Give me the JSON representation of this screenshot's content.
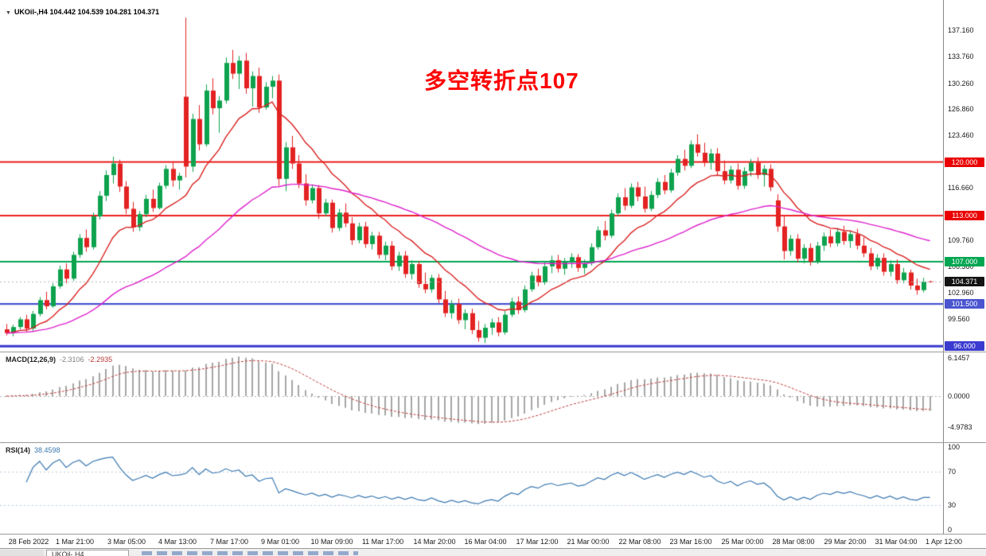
{
  "title_bar": {
    "dropdown_icon": "▼",
    "symbol": "UKOil-,H4",
    "ohlc": "104.442 104.539 104.281 104.371"
  },
  "annotation": {
    "text": "多空转折点107",
    "color": "#fe0000"
  },
  "bottom_bar": {
    "active_tab": "UKOil-,H4"
  },
  "chart_data": {
    "type": "candlestick",
    "symbol": "UKOil-",
    "timeframe": "H4",
    "title": "UKOil-,H4 104.442 104.539 104.281 104.371",
    "current": {
      "open": 104.442,
      "high": 104.539,
      "low": 104.281,
      "close": 104.371
    },
    "main_pane": {
      "ylim": [
        95.3,
        141.1
      ],
      "grid": "off",
      "candle_colors": {
        "bull": "#0ea24e",
        "bear": "#e32222"
      },
      "moving_averages": [
        {
          "period": 13,
          "color": "#d92121"
        },
        {
          "period": 48,
          "color": "#dd22cc"
        }
      ],
      "y_ticks": [
        {
          "label": "137.160",
          "value": 137.16
        },
        {
          "label": "133.760",
          "value": 133.76
        },
        {
          "label": "130.260",
          "value": 130.26
        },
        {
          "label": "126.860",
          "value": 126.86
        },
        {
          "label": "123.460",
          "value": 123.46
        },
        {
          "label": "116.660",
          "value": 116.66
        },
        {
          "label": "109.760",
          "value": 109.76
        },
        {
          "label": "106.360",
          "value": 106.36
        },
        {
          "label": "102.960",
          "value": 102.96
        },
        {
          "label": "99.560",
          "value": 99.56
        }
      ],
      "levels": [
        {
          "label": "120.000",
          "value": 120.0,
          "color": "#ea0000",
          "width": 1.7
        },
        {
          "label": "113.000",
          "value": 113.0,
          "color": "#ea0000",
          "width": 1.7
        },
        {
          "label": "107.000",
          "value": 107.0,
          "color": "#00a651",
          "width": 2
        },
        {
          "label": "101.500",
          "value": 101.5,
          "color": "#4a55cf",
          "width": 2.2
        },
        {
          "label": "96.000",
          "value": 96.0,
          "color": "#3b3bd0",
          "width": 2.8
        }
      ],
      "current_price_badge": {
        "label": "104.371",
        "value": 104.371,
        "bg": "#141414"
      }
    },
    "macd_pane": {
      "label": "MACD(12,26,9)",
      "value_main": "-2.3106",
      "value_signal": "-2.2935",
      "params": [
        12,
        26,
        9
      ],
      "ylim": [
        -7.4,
        7.0
      ],
      "bar_color": "#a6a6a6",
      "signal_color": "#c23b3b",
      "y_ticks": [
        {
          "label": "6.1457",
          "value": 6.1457
        },
        {
          "label": "0.0000",
          "value": 0
        },
        {
          "label": "-4.9783",
          "value": -4.9783
        }
      ]
    },
    "rsi_pane": {
      "label": "RSI(14)",
      "value_text": "38.4598",
      "period": 14,
      "ylim": [
        0,
        100
      ],
      "line_color": "#3a78b0",
      "levels": [
        70,
        30
      ],
      "y_ticks": [
        {
          "label": "100",
          "value": 100
        },
        {
          "label": "70",
          "value": 70
        },
        {
          "label": "30",
          "value": 30
        },
        {
          "label": "0",
          "value": 0
        }
      ]
    },
    "x_axis": {
      "labels": [
        "28 Feb 2022",
        "1 Mar 21:00",
        "3 Mar 05:00",
        "4 Mar 13:00",
        "7 Mar 17:00",
        "9 Mar 01:00",
        "10 Mar 09:00",
        "11 Mar 17:00",
        "14 Mar 20:00",
        "16 Mar 04:00",
        "17 Mar 12:00",
        "21 Mar 00:00",
        "22 Mar 08:00",
        "23 Mar 16:00",
        "25 Mar 00:00",
        "28 Mar 08:00",
        "29 Mar 20:00",
        "31 Mar 04:00",
        "1 Apr 12:00"
      ],
      "positions": [
        36,
        94,
        159,
        223,
        288,
        352,
        417,
        481,
        546,
        610,
        675,
        739,
        804,
        868,
        933,
        997,
        1062,
        1126,
        1186
      ]
    },
    "candles": [
      [
        98.2,
        98.9,
        97.4,
        97.7
      ],
      [
        97.7,
        98.8,
        97.3,
        98.5
      ],
      [
        98.5,
        99.8,
        98.2,
        99.5
      ],
      [
        99.5,
        100.1,
        97.9,
        98.3
      ],
      [
        98.3,
        100.6,
        98.0,
        100.2
      ],
      [
        100.2,
        102.4,
        99.9,
        102.0
      ],
      [
        102.0,
        103.1,
        100.8,
        101.2
      ],
      [
        101.2,
        104.2,
        101.0,
        103.8
      ],
      [
        103.8,
        106.5,
        103.5,
        106.0
      ],
      [
        106.0,
        106.8,
        104.2,
        104.8
      ],
      [
        104.8,
        108.3,
        104.5,
        107.9
      ],
      [
        107.9,
        110.6,
        107.5,
        110.1
      ],
      [
        110.1,
        111.2,
        108.3,
        108.9
      ],
      [
        108.9,
        113.4,
        108.6,
        112.9
      ],
      [
        112.9,
        116.2,
        112.5,
        115.6
      ],
      [
        115.6,
        118.9,
        114.9,
        118.3
      ],
      [
        118.3,
        120.7,
        117.2,
        119.8
      ],
      [
        119.8,
        120.3,
        116.1,
        116.8
      ],
      [
        116.8,
        117.5,
        113.2,
        113.9
      ],
      [
        113.9,
        114.8,
        110.9,
        111.5
      ],
      [
        111.5,
        113.6,
        111.0,
        113.2
      ],
      [
        113.2,
        115.7,
        112.8,
        115.2
      ],
      [
        115.2,
        116.4,
        113.5,
        114.0
      ],
      [
        114.0,
        117.3,
        113.8,
        116.9
      ],
      [
        116.9,
        119.6,
        116.5,
        119.1
      ],
      [
        119.1,
        119.9,
        116.8,
        117.6
      ],
      [
        117.6,
        118.6,
        116.4,
        118.2
      ],
      [
        128.5,
        138.8,
        118.0,
        119.4
      ],
      [
        119.4,
        126.3,
        118.7,
        125.6
      ],
      [
        125.6,
        127.4,
        121.5,
        122.3
      ],
      [
        122.3,
        130.1,
        122.0,
        129.3
      ],
      [
        129.3,
        130.9,
        126.2,
        127.0
      ],
      [
        127.0,
        128.6,
        123.8,
        128.0
      ],
      [
        128.0,
        133.6,
        127.6,
        132.9
      ],
      [
        132.9,
        134.6,
        130.8,
        131.5
      ],
      [
        131.5,
        133.8,
        129.5,
        133.2
      ],
      [
        133.2,
        134.2,
        128.9,
        129.6
      ],
      [
        129.6,
        131.8,
        127.2,
        131.2
      ],
      [
        131.2,
        132.3,
        126.4,
        127.1
      ],
      [
        127.1,
        130.4,
        126.8,
        129.8
      ],
      [
        129.8,
        131.2,
        128.3,
        130.6
      ],
      [
        130.6,
        131.4,
        116.9,
        117.8
      ],
      [
        117.8,
        122.6,
        116.2,
        121.9
      ],
      [
        121.9,
        123.4,
        119.1,
        119.8
      ],
      [
        119.8,
        120.9,
        116.6,
        117.2
      ],
      [
        117.2,
        118.4,
        114.3,
        115.0
      ],
      [
        115.0,
        117.1,
        114.6,
        116.6
      ],
      [
        116.6,
        117.0,
        112.6,
        113.3
      ],
      [
        113.3,
        115.2,
        112.9,
        114.7
      ],
      [
        114.7,
        115.1,
        110.8,
        111.4
      ],
      [
        111.4,
        113.9,
        111.0,
        113.4
      ],
      [
        113.4,
        114.6,
        111.5,
        112.0
      ],
      [
        112.0,
        112.8,
        109.2,
        109.8
      ],
      [
        109.8,
        112.1,
        109.4,
        111.6
      ],
      [
        111.6,
        112.2,
        108.8,
        109.3
      ],
      [
        109.3,
        110.9,
        108.6,
        110.4
      ],
      [
        110.4,
        110.9,
        107.4,
        107.9
      ],
      [
        107.9,
        109.6,
        107.2,
        109.1
      ],
      [
        109.1,
        109.7,
        105.9,
        106.4
      ],
      [
        106.4,
        108.3,
        105.8,
        107.8
      ],
      [
        107.8,
        108.4,
        104.9,
        105.4
      ],
      [
        105.4,
        107.2,
        104.7,
        106.7
      ],
      [
        106.7,
        107.1,
        103.6,
        104.1
      ],
      [
        104.1,
        105.6,
        102.9,
        103.4
      ],
      [
        103.4,
        105.3,
        103.0,
        104.9
      ],
      [
        104.9,
        105.4,
        101.6,
        102.1
      ],
      [
        102.1,
        103.2,
        99.8,
        100.3
      ],
      [
        100.3,
        102.0,
        99.6,
        101.5
      ],
      [
        101.5,
        102.2,
        98.9,
        99.4
      ],
      [
        99.4,
        100.8,
        98.2,
        100.3
      ],
      [
        100.3,
        100.9,
        97.6,
        98.1
      ],
      [
        98.1,
        99.3,
        96.6,
        97.1
      ],
      [
        97.1,
        98.9,
        96.4,
        98.4
      ],
      [
        98.4,
        99.6,
        97.5,
        99.1
      ],
      [
        99.1,
        99.8,
        97.3,
        97.8
      ],
      [
        97.8,
        100.6,
        97.5,
        100.1
      ],
      [
        100.1,
        102.3,
        99.8,
        101.8
      ],
      [
        101.8,
        102.5,
        100.2,
        100.7
      ],
      [
        100.7,
        103.9,
        100.4,
        103.4
      ],
      [
        103.4,
        105.7,
        103.1,
        105.2
      ],
      [
        105.2,
        106.1,
        103.8,
        104.3
      ],
      [
        104.3,
        106.9,
        104.0,
        106.4
      ],
      [
        106.4,
        107.8,
        105.5,
        107.2
      ],
      [
        107.2,
        107.9,
        105.6,
        106.1
      ],
      [
        106.1,
        107.5,
        105.3,
        107.0
      ],
      [
        107.0,
        108.1,
        106.2,
        107.6
      ],
      [
        107.6,
        108.0,
        105.7,
        106.2
      ],
      [
        106.2,
        107.3,
        105.4,
        106.8
      ],
      [
        106.8,
        109.4,
        106.5,
        108.9
      ],
      [
        108.9,
        111.6,
        108.6,
        111.1
      ],
      [
        111.1,
        112.3,
        109.8,
        110.4
      ],
      [
        110.4,
        113.8,
        110.1,
        113.3
      ],
      [
        113.3,
        115.9,
        112.9,
        115.4
      ],
      [
        115.4,
        116.6,
        113.7,
        114.3
      ],
      [
        114.3,
        117.2,
        114.0,
        116.7
      ],
      [
        116.7,
        117.4,
        114.9,
        115.5
      ],
      [
        115.5,
        116.8,
        113.4,
        113.9
      ],
      [
        113.9,
        116.2,
        113.6,
        115.7
      ],
      [
        115.7,
        117.9,
        115.3,
        117.4
      ],
      [
        117.4,
        118.3,
        115.8,
        116.3
      ],
      [
        116.3,
        119.1,
        116.0,
        118.6
      ],
      [
        118.6,
        120.9,
        118.2,
        120.4
      ],
      [
        120.4,
        121.6,
        118.9,
        119.5
      ],
      [
        119.5,
        122.8,
        119.2,
        122.3
      ],
      [
        122.3,
        123.6,
        120.7,
        121.2
      ],
      [
        121.2,
        122.5,
        119.4,
        119.9
      ],
      [
        119.9,
        121.7,
        119.0,
        121.1
      ],
      [
        121.1,
        121.8,
        118.3,
        118.8
      ],
      [
        118.8,
        120.2,
        117.1,
        117.6
      ],
      [
        117.6,
        119.5,
        117.2,
        119.0
      ],
      [
        119.0,
        119.8,
        116.4,
        116.9
      ],
      [
        116.9,
        119.3,
        116.5,
        118.8
      ],
      [
        118.8,
        120.4,
        118.1,
        119.9
      ],
      [
        119.9,
        120.6,
        117.8,
        118.3
      ],
      [
        118.3,
        119.6,
        116.8,
        119.1
      ],
      [
        119.1,
        119.7,
        116.2,
        116.7
      ],
      [
        115.0,
        115.8,
        110.9,
        111.6
      ],
      [
        111.6,
        113.0,
        107.3,
        108.4
      ],
      [
        108.4,
        110.5,
        107.8,
        110.0
      ],
      [
        110.0,
        110.6,
        106.9,
        107.4
      ],
      [
        107.4,
        109.3,
        106.8,
        108.8
      ],
      [
        108.8,
        109.4,
        106.5,
        107.0
      ],
      [
        107.0,
        109.6,
        106.7,
        109.1
      ],
      [
        109.1,
        110.8,
        108.4,
        110.3
      ],
      [
        110.3,
        111.2,
        108.9,
        109.4
      ],
      [
        109.4,
        111.4,
        109.0,
        110.9
      ],
      [
        110.9,
        111.7,
        109.2,
        109.7
      ],
      [
        109.7,
        111.1,
        108.8,
        110.6
      ],
      [
        110.6,
        111.3,
        108.6,
        109.1
      ],
      [
        109.1,
        110.2,
        107.6,
        108.1
      ],
      [
        108.1,
        108.8,
        105.9,
        106.4
      ],
      [
        106.4,
        108.0,
        106.0,
        107.5
      ],
      [
        107.5,
        108.1,
        105.2,
        105.7
      ],
      [
        105.7,
        107.2,
        105.1,
        106.7
      ],
      [
        106.7,
        107.3,
        104.1,
        104.6
      ],
      [
        104.6,
        106.2,
        104.2,
        105.6
      ],
      [
        105.6,
        106.0,
        103.4,
        103.9
      ],
      [
        103.9,
        104.8,
        102.7,
        103.3
      ],
      [
        103.3,
        104.9,
        103.0,
        104.4
      ],
      [
        104.442,
        104.539,
        104.281,
        104.371
      ]
    ]
  }
}
